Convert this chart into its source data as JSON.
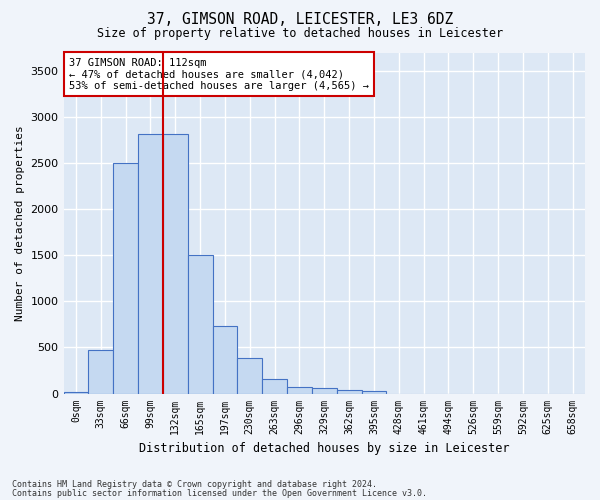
{
  "title1": "37, GIMSON ROAD, LEICESTER, LE3 6DZ",
  "title2": "Size of property relative to detached houses in Leicester",
  "xlabel": "Distribution of detached houses by size in Leicester",
  "ylabel": "Number of detached properties",
  "bar_values": [
    20,
    470,
    2500,
    2820,
    2820,
    1500,
    730,
    390,
    155,
    70,
    55,
    40,
    30,
    0,
    0,
    0,
    0,
    0,
    0,
    0,
    0
  ],
  "bar_labels": [
    "0sqm",
    "33sqm",
    "66sqm",
    "99sqm",
    "132sqm",
    "165sqm",
    "197sqm",
    "230sqm",
    "263sqm",
    "296sqm",
    "329sqm",
    "362sqm",
    "395sqm",
    "428sqm",
    "461sqm",
    "494sqm",
    "526sqm",
    "559sqm",
    "592sqm",
    "625sqm",
    "658sqm"
  ],
  "bar_color": "#c5d9f1",
  "bar_edge_color": "#4472c4",
  "background_color": "#dde8f5",
  "grid_color": "#ffffff",
  "vline_x": 3.5,
  "vline_color": "#cc0000",
  "annotation_text": "37 GIMSON ROAD: 112sqm\n← 47% of detached houses are smaller (4,042)\n53% of semi-detached houses are larger (4,565) →",
  "annotation_box_color": "#ffffff",
  "annotation_box_edge": "#cc0000",
  "ylim": [
    0,
    3700
  ],
  "yticks": [
    0,
    500,
    1000,
    1500,
    2000,
    2500,
    3000,
    3500
  ],
  "footer1": "Contains HM Land Registry data © Crown copyright and database right 2024.",
  "footer2": "Contains public sector information licensed under the Open Government Licence v3.0."
}
